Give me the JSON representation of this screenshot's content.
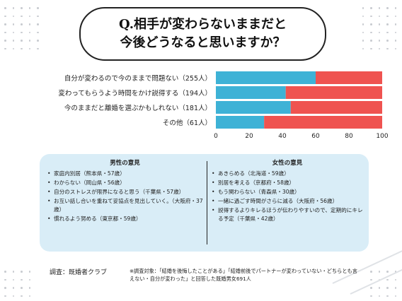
{
  "title": {
    "line1": "Q.相手が変わらないままだと",
    "line2": "今後どうなると思いますか？"
  },
  "chart_data": {
    "type": "bar",
    "stacked": true,
    "orientation": "horizontal",
    "categories": [
      "自分が変わるので今のままで問題ない（255人）",
      "変わってもらうよう時間をかけ説得する（194人）",
      "今のままだと離婚を選ぶかもしれない（181人）",
      "その他（61人）"
    ],
    "series": [
      {
        "values": [
          60,
          42,
          45,
          29
        ],
        "color": "#3eb2d6"
      },
      {
        "values": [
          40,
          58,
          55,
          71
        ],
        "color": "#ef5350"
      }
    ],
    "xlim": [
      0,
      100
    ],
    "xticks": [
      "0",
      "20",
      "40",
      "60",
      "80",
      "100"
    ],
    "grid": false
  },
  "opinions": {
    "male": {
      "title": "男性の意見",
      "items": [
        "家庭内別居（熊本県・57歳）",
        "わからない（岡山県・56歳）",
        "自分のストレスが限界になると思う（千葉県・57歳）",
        "お互い話し合いを重ねて妥協点を見出していく。（大阪府・37歳）",
        "慣れるよう努める（東京都・59歳）"
      ]
    },
    "female": {
      "title": "女性の意見",
      "items": [
        "あきらめる（北海道・59歳）",
        "別居を考える（京都府・58歳）",
        "もう関わらない（青森県・30歳）",
        "一緒に過ごす時間がさらに減る（大阪府・56歳）",
        "説得するよりキレるほうが伝わりやすいので、定期的にキレる予定（千葉県・42歳）"
      ]
    }
  },
  "source": "調査：既婚者クラブ",
  "note": "※調査対象：「結婚を後悔したことがある」「結婚前後でパートナーが変わっていない・どちらとも言えない・自分が変わった」と回答した既婚男女691人"
}
